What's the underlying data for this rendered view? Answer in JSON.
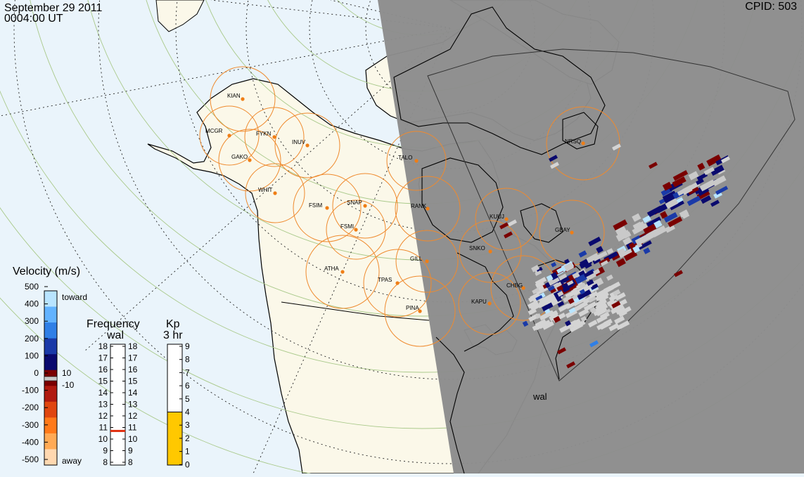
{
  "header": {
    "date": "September 29 2011",
    "time": "0004:00 UT",
    "cpid": "CPID:   503"
  },
  "stations": [
    {
      "code": "KIAN"
    },
    {
      "code": "MCGR"
    },
    {
      "code": "FYKN"
    },
    {
      "code": "INUV"
    },
    {
      "code": "GAKO"
    },
    {
      "code": "WHIT"
    },
    {
      "code": "FSIM"
    },
    {
      "code": "SNAP"
    },
    {
      "code": "FSMI"
    },
    {
      "code": "TALO"
    },
    {
      "code": "RANK"
    },
    {
      "code": "KUUJ"
    },
    {
      "code": "GBAY"
    },
    {
      "code": "SNKO"
    },
    {
      "code": "ATHA"
    },
    {
      "code": "GILL"
    },
    {
      "code": "TPAS"
    },
    {
      "code": "CHBG"
    },
    {
      "code": "KAPU"
    },
    {
      "code": "PINA"
    },
    {
      "code": "NRSQ"
    }
  ],
  "radar_label": "wal",
  "velocity_scale": {
    "title": "Velocity (m/s)",
    "ticks": [
      "500",
      "400",
      "300",
      "200",
      "100",
      "0",
      "-100",
      "-200",
      "-300",
      "-400",
      "-500"
    ],
    "toward": "toward",
    "away": "away",
    "ground_scatter": [
      "10",
      "-10"
    ],
    "colors": [
      "#ffd8b0",
      "#ffaa55",
      "#ff7a1a",
      "#e0460f",
      "#b01a0f",
      "#7a0000",
      "#0a0a6e",
      "#1a3aa8",
      "#2f7fe6",
      "#62b3ff",
      "#b8e4ff"
    ]
  },
  "frequency_scale": {
    "title": "Frequency",
    "radar": "wal",
    "left_ticks": [
      "18",
      "17",
      "16",
      "15",
      "14",
      "13",
      "12",
      "11",
      "10",
      "9",
      "8"
    ],
    "right_ticks": [
      "18",
      "17",
      "16",
      "15",
      "14",
      "13",
      "12",
      "11",
      "10",
      "9",
      "8"
    ],
    "value_mhz": 10.7,
    "indicator_color": "#e03010"
  },
  "kp_scale": {
    "title": "Kp",
    "subtitle": "3 hr",
    "ticks": [
      "9",
      "8",
      "7",
      "6",
      "5",
      "4",
      "3",
      "2",
      "1",
      "0"
    ],
    "value": 4,
    "fill_color": "#ffc800"
  },
  "colors": {
    "ocean": "#eaf4fb",
    "land_day": "#fbf8e9",
    "night": "#8c8c8c",
    "fov_circle": "#ef8a2e",
    "station_dot": "#ef7e16"
  }
}
